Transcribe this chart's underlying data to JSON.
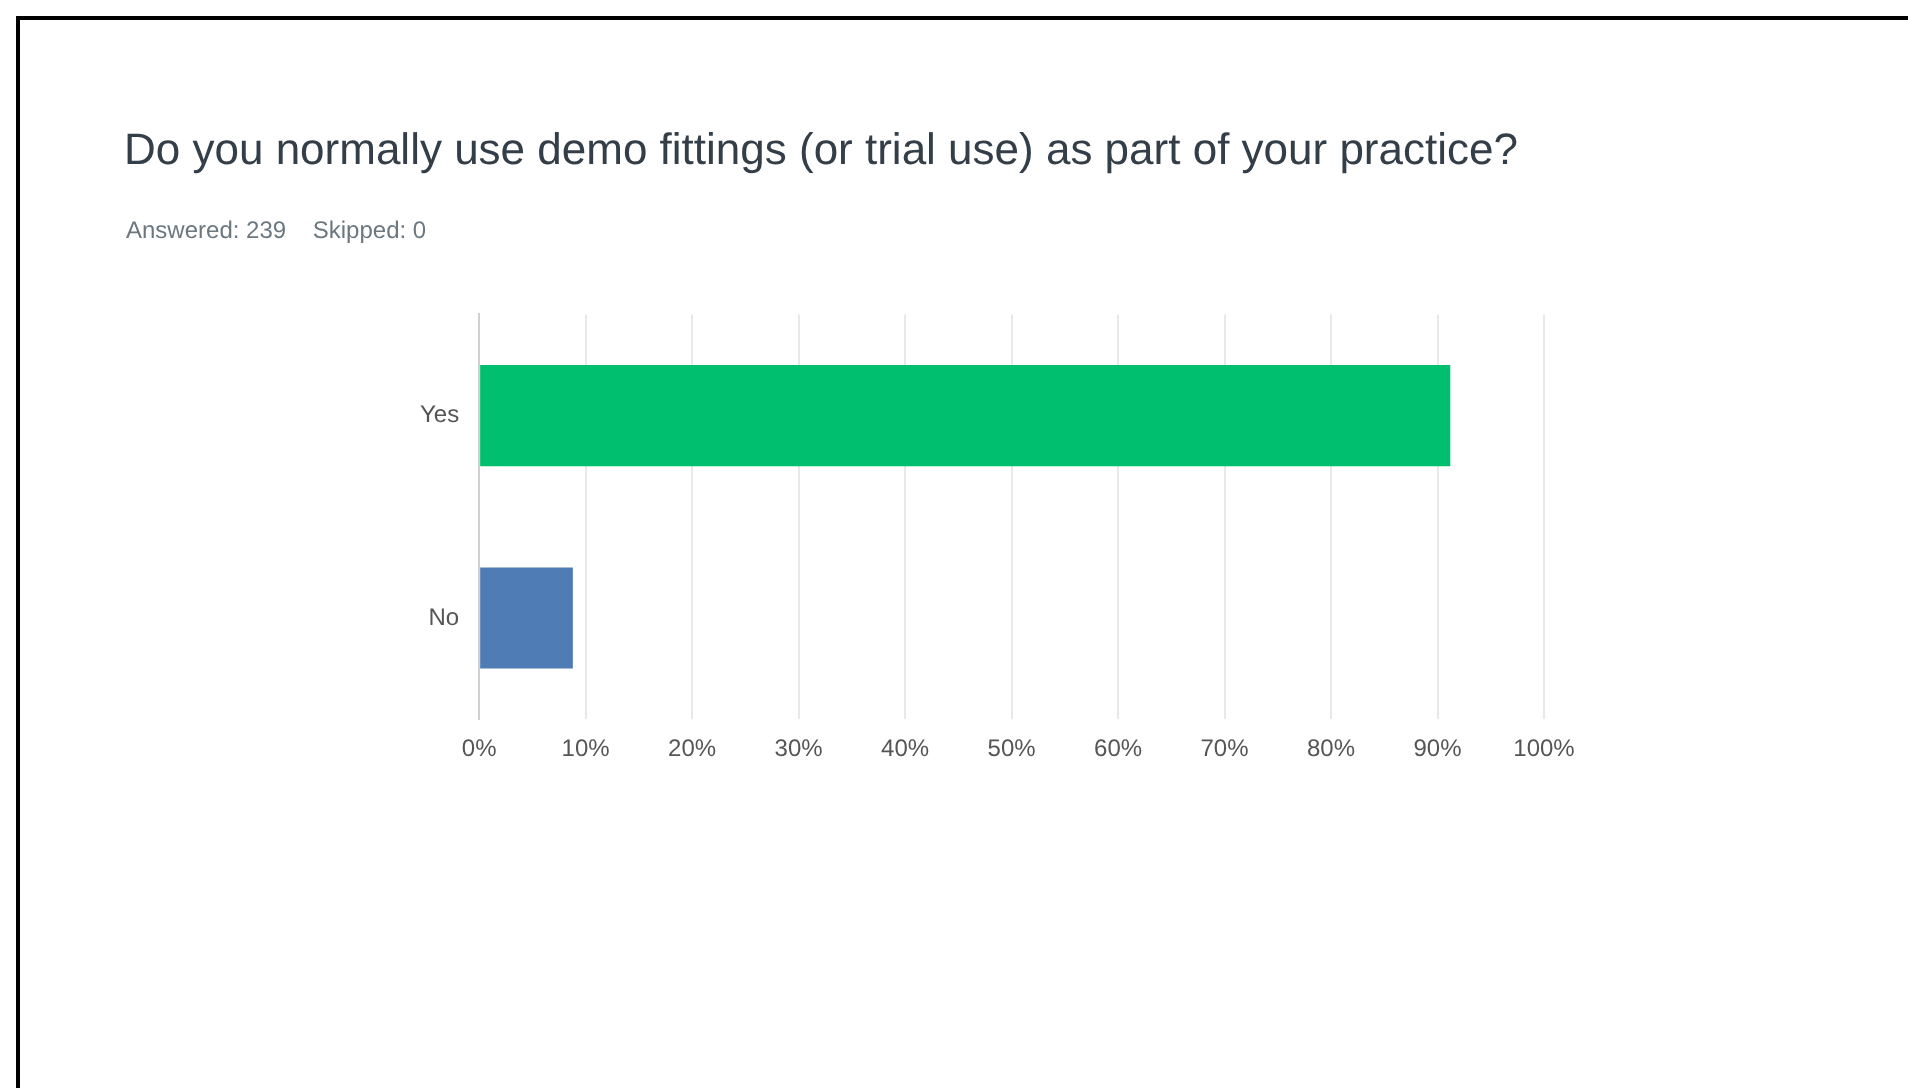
{
  "chart_data": {
    "type": "bar",
    "orientation": "horizontal",
    "title": "Do you normally use demo fittings (or trial use) as part of your practice?",
    "subtitle": "Answered: 239    Skipped: 0",
    "categories": [
      "Yes",
      "No"
    ],
    "values": [
      91.2,
      8.8
    ],
    "colors": [
      "#00bf6f",
      "#507cb6"
    ],
    "xlim": [
      0,
      100
    ],
    "xticks": [
      {
        "value": 0,
        "label": "0%"
      },
      {
        "value": 10,
        "label": "10%"
      },
      {
        "value": 20,
        "label": "20%"
      },
      {
        "value": 30,
        "label": "30%"
      },
      {
        "value": 40,
        "label": "40%"
      },
      {
        "value": 50,
        "label": "50%"
      },
      {
        "value": 60,
        "label": "60%"
      },
      {
        "value": 70,
        "label": "70%"
      },
      {
        "value": 80,
        "label": "80%"
      },
      {
        "value": 90,
        "label": "90%"
      },
      {
        "value": 100,
        "label": "100%"
      }
    ],
    "grid": "x",
    "legend": false
  }
}
